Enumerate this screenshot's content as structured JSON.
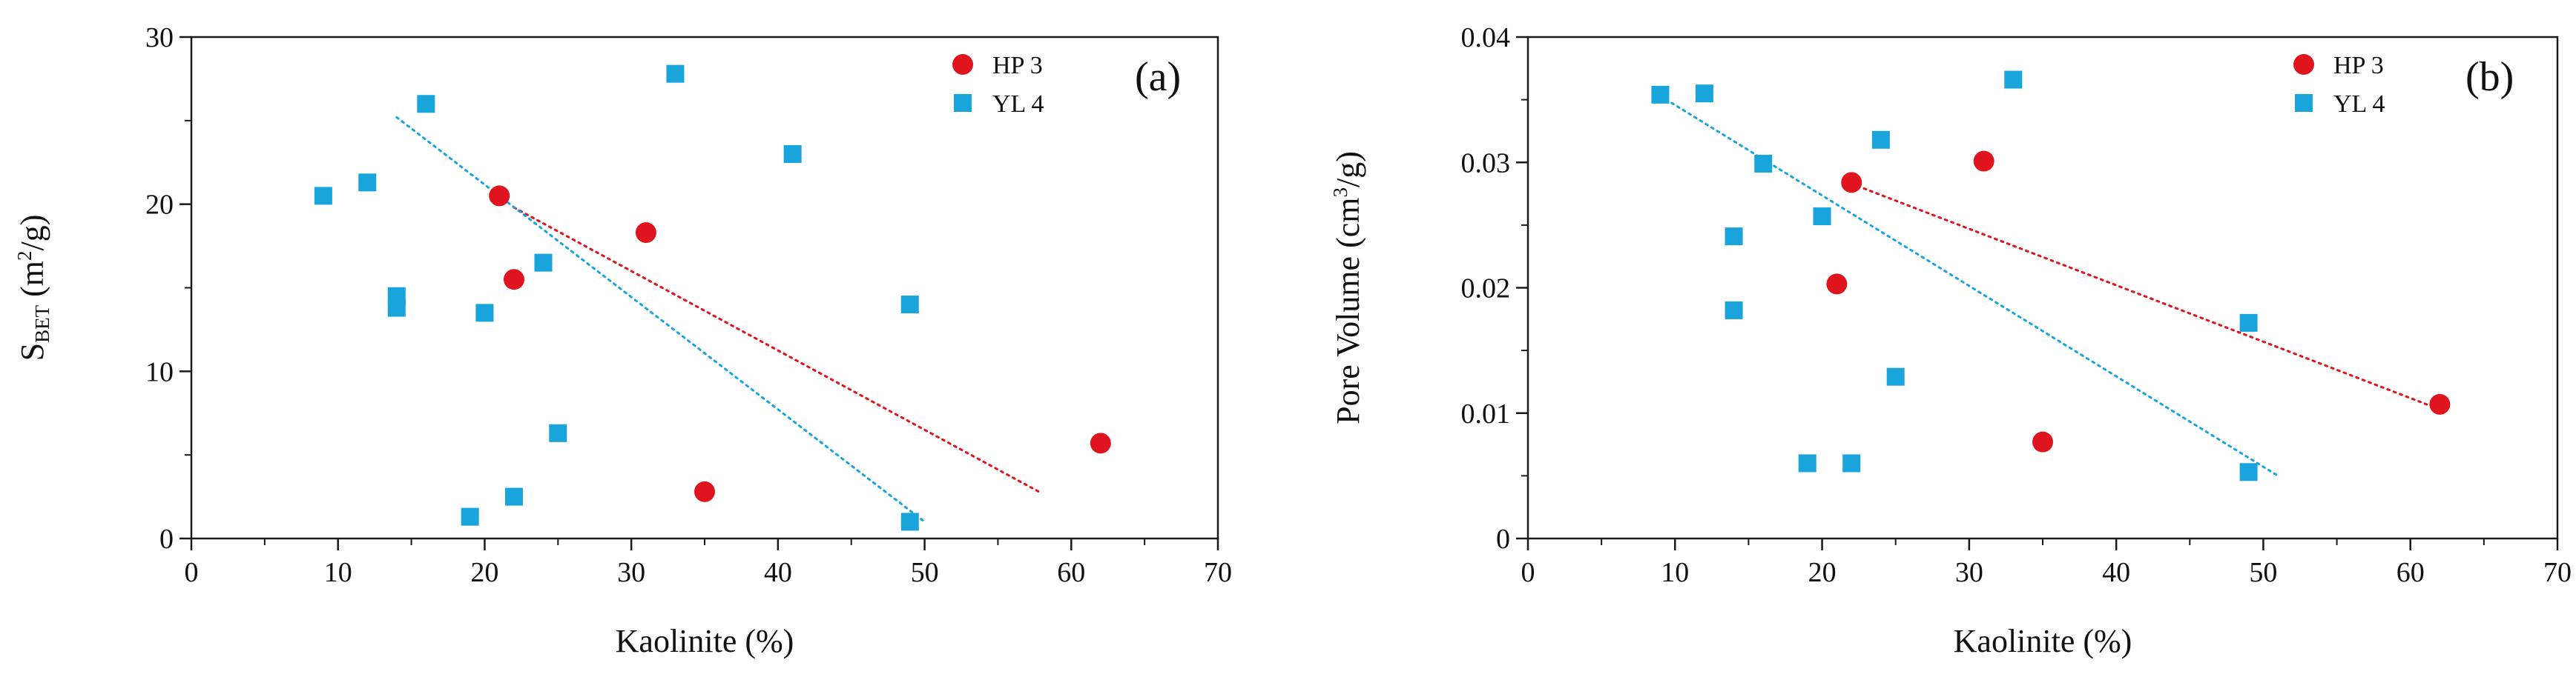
{
  "chart_data": [
    {
      "type": "scatter",
      "panel_label": "(a)",
      "xlabel": "Kaolinite (%)",
      "ylabel": {
        "base": "S",
        "sub": "BET",
        "open": " (m",
        "sup": "2",
        "close": "/g)"
      },
      "xlim": [
        0,
        70
      ],
      "ylim": [
        0,
        30
      ],
      "xticks": [
        0,
        10,
        20,
        30,
        40,
        50,
        60,
        70
      ],
      "yticks": [
        0,
        10,
        20,
        30
      ],
      "legend_position": "top-right",
      "series": [
        {
          "name": "HP 3",
          "marker": "circle",
          "color": "#e0141e",
          "points": [
            [
              21,
              20.5
            ],
            [
              22,
              15.5
            ],
            [
              31,
              18.3
            ],
            [
              35,
              2.8
            ],
            [
              62,
              5.7
            ]
          ],
          "trendline": [
            [
              22,
              19.8
            ],
            [
              58,
              2.7
            ]
          ]
        },
        {
          "name": "YL 4",
          "marker": "square",
          "color": "#1aa4dc",
          "points": [
            [
              9,
              20.5
            ],
            [
              12,
              21.3
            ],
            [
              14,
              14.5
            ],
            [
              14,
              13.8
            ],
            [
              16,
              26.0
            ],
            [
              19,
              1.3
            ],
            [
              20,
              13.5
            ],
            [
              22,
              2.5
            ],
            [
              24,
              16.5
            ],
            [
              25,
              6.3
            ],
            [
              33,
              27.8
            ],
            [
              41,
              23.0
            ],
            [
              49,
              14.0
            ],
            [
              49,
              1.0
            ]
          ],
          "trendline": [
            [
              14,
              25.2
            ],
            [
              50,
              1.0
            ]
          ]
        }
      ]
    },
    {
      "type": "scatter",
      "panel_label": "(b)",
      "xlabel": "Kaolinite (%)",
      "ylabel": {
        "base": "Pore Volume (cm",
        "sup": "3",
        "close": "/g)"
      },
      "xlim": [
        0,
        70
      ],
      "ylim": [
        0,
        0.04
      ],
      "xticks": [
        0,
        10,
        20,
        30,
        40,
        50,
        60,
        70
      ],
      "yticks": [
        0,
        0.01,
        0.02,
        0.03,
        0.04
      ],
      "legend_position": "top-right",
      "series": [
        {
          "name": "HP 3",
          "marker": "circle",
          "color": "#e0141e",
          "points": [
            [
              21,
              0.0203
            ],
            [
              22,
              0.0284
            ],
            [
              31,
              0.0301
            ],
            [
              35,
              0.0077
            ],
            [
              62,
              0.0107
            ]
          ],
          "trendline": [
            [
              22,
              0.0283
            ],
            [
              62,
              0.0103
            ]
          ]
        },
        {
          "name": "YL 4",
          "marker": "square",
          "color": "#1aa4dc",
          "points": [
            [
              9,
              0.0354
            ],
            [
              12,
              0.0355
            ],
            [
              14,
              0.0241
            ],
            [
              14,
              0.0182
            ],
            [
              16,
              0.0299
            ],
            [
              19,
              0.006
            ],
            [
              20,
              0.0257
            ],
            [
              22,
              0.006
            ],
            [
              24,
              0.0318
            ],
            [
              25,
              0.0129
            ],
            [
              33,
              0.0366
            ],
            [
              49,
              0.0172
            ],
            [
              49,
              0.0053
            ]
          ],
          "trendline": [
            [
              9,
              0.0353
            ],
            [
              51,
              0.005
            ]
          ]
        }
      ]
    }
  ]
}
